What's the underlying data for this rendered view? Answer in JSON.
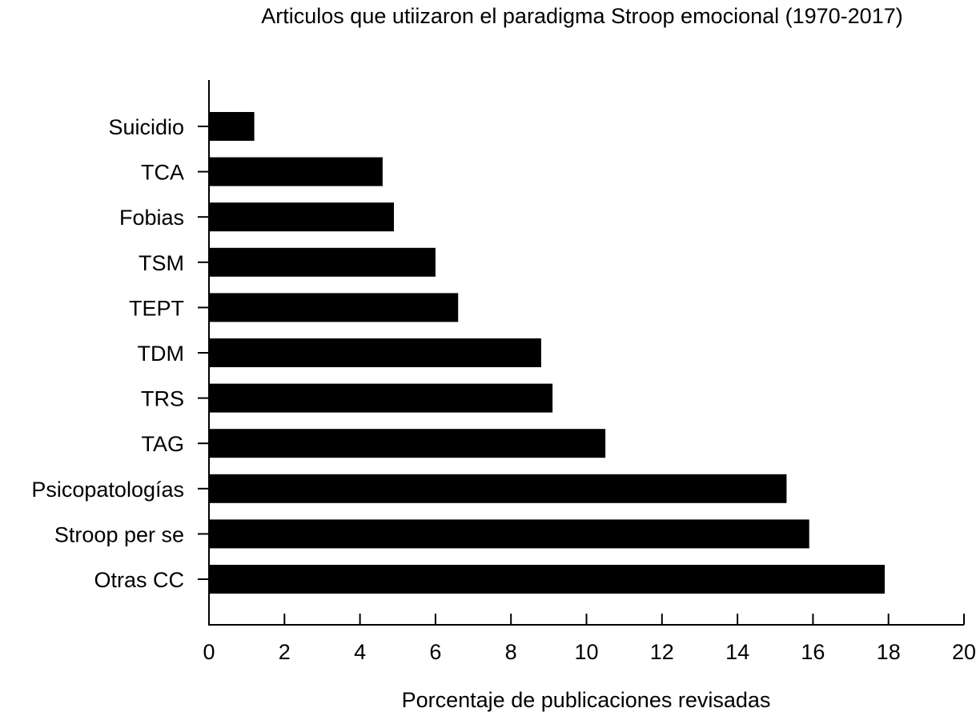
{
  "chart_data": {
    "type": "bar",
    "orientation": "horizontal",
    "title": "Articulos que utiizaron el paradigma Stroop emocional (1970-2017)",
    "xlabel": "Porcentaje de publicaciones revisadas",
    "ylabel": "",
    "xlim": [
      0,
      20
    ],
    "xticks": [
      "0",
      "2",
      "4",
      "6",
      "8",
      "10",
      "12",
      "14",
      "16",
      "18",
      "20"
    ],
    "categories": [
      "Suicidio",
      "TCA",
      "Fobias",
      "TSM",
      "TEPT",
      "TDM",
      "TRS",
      "TAG",
      "Psicopatologías",
      "Stroop per se",
      "Otras CC"
    ],
    "values": [
      1.2,
      4.6,
      4.9,
      6.0,
      6.6,
      8.8,
      9.1,
      10.5,
      15.3,
      15.9,
      17.9
    ],
    "bar_color": "#000000",
    "grid": false,
    "legend": "none"
  }
}
